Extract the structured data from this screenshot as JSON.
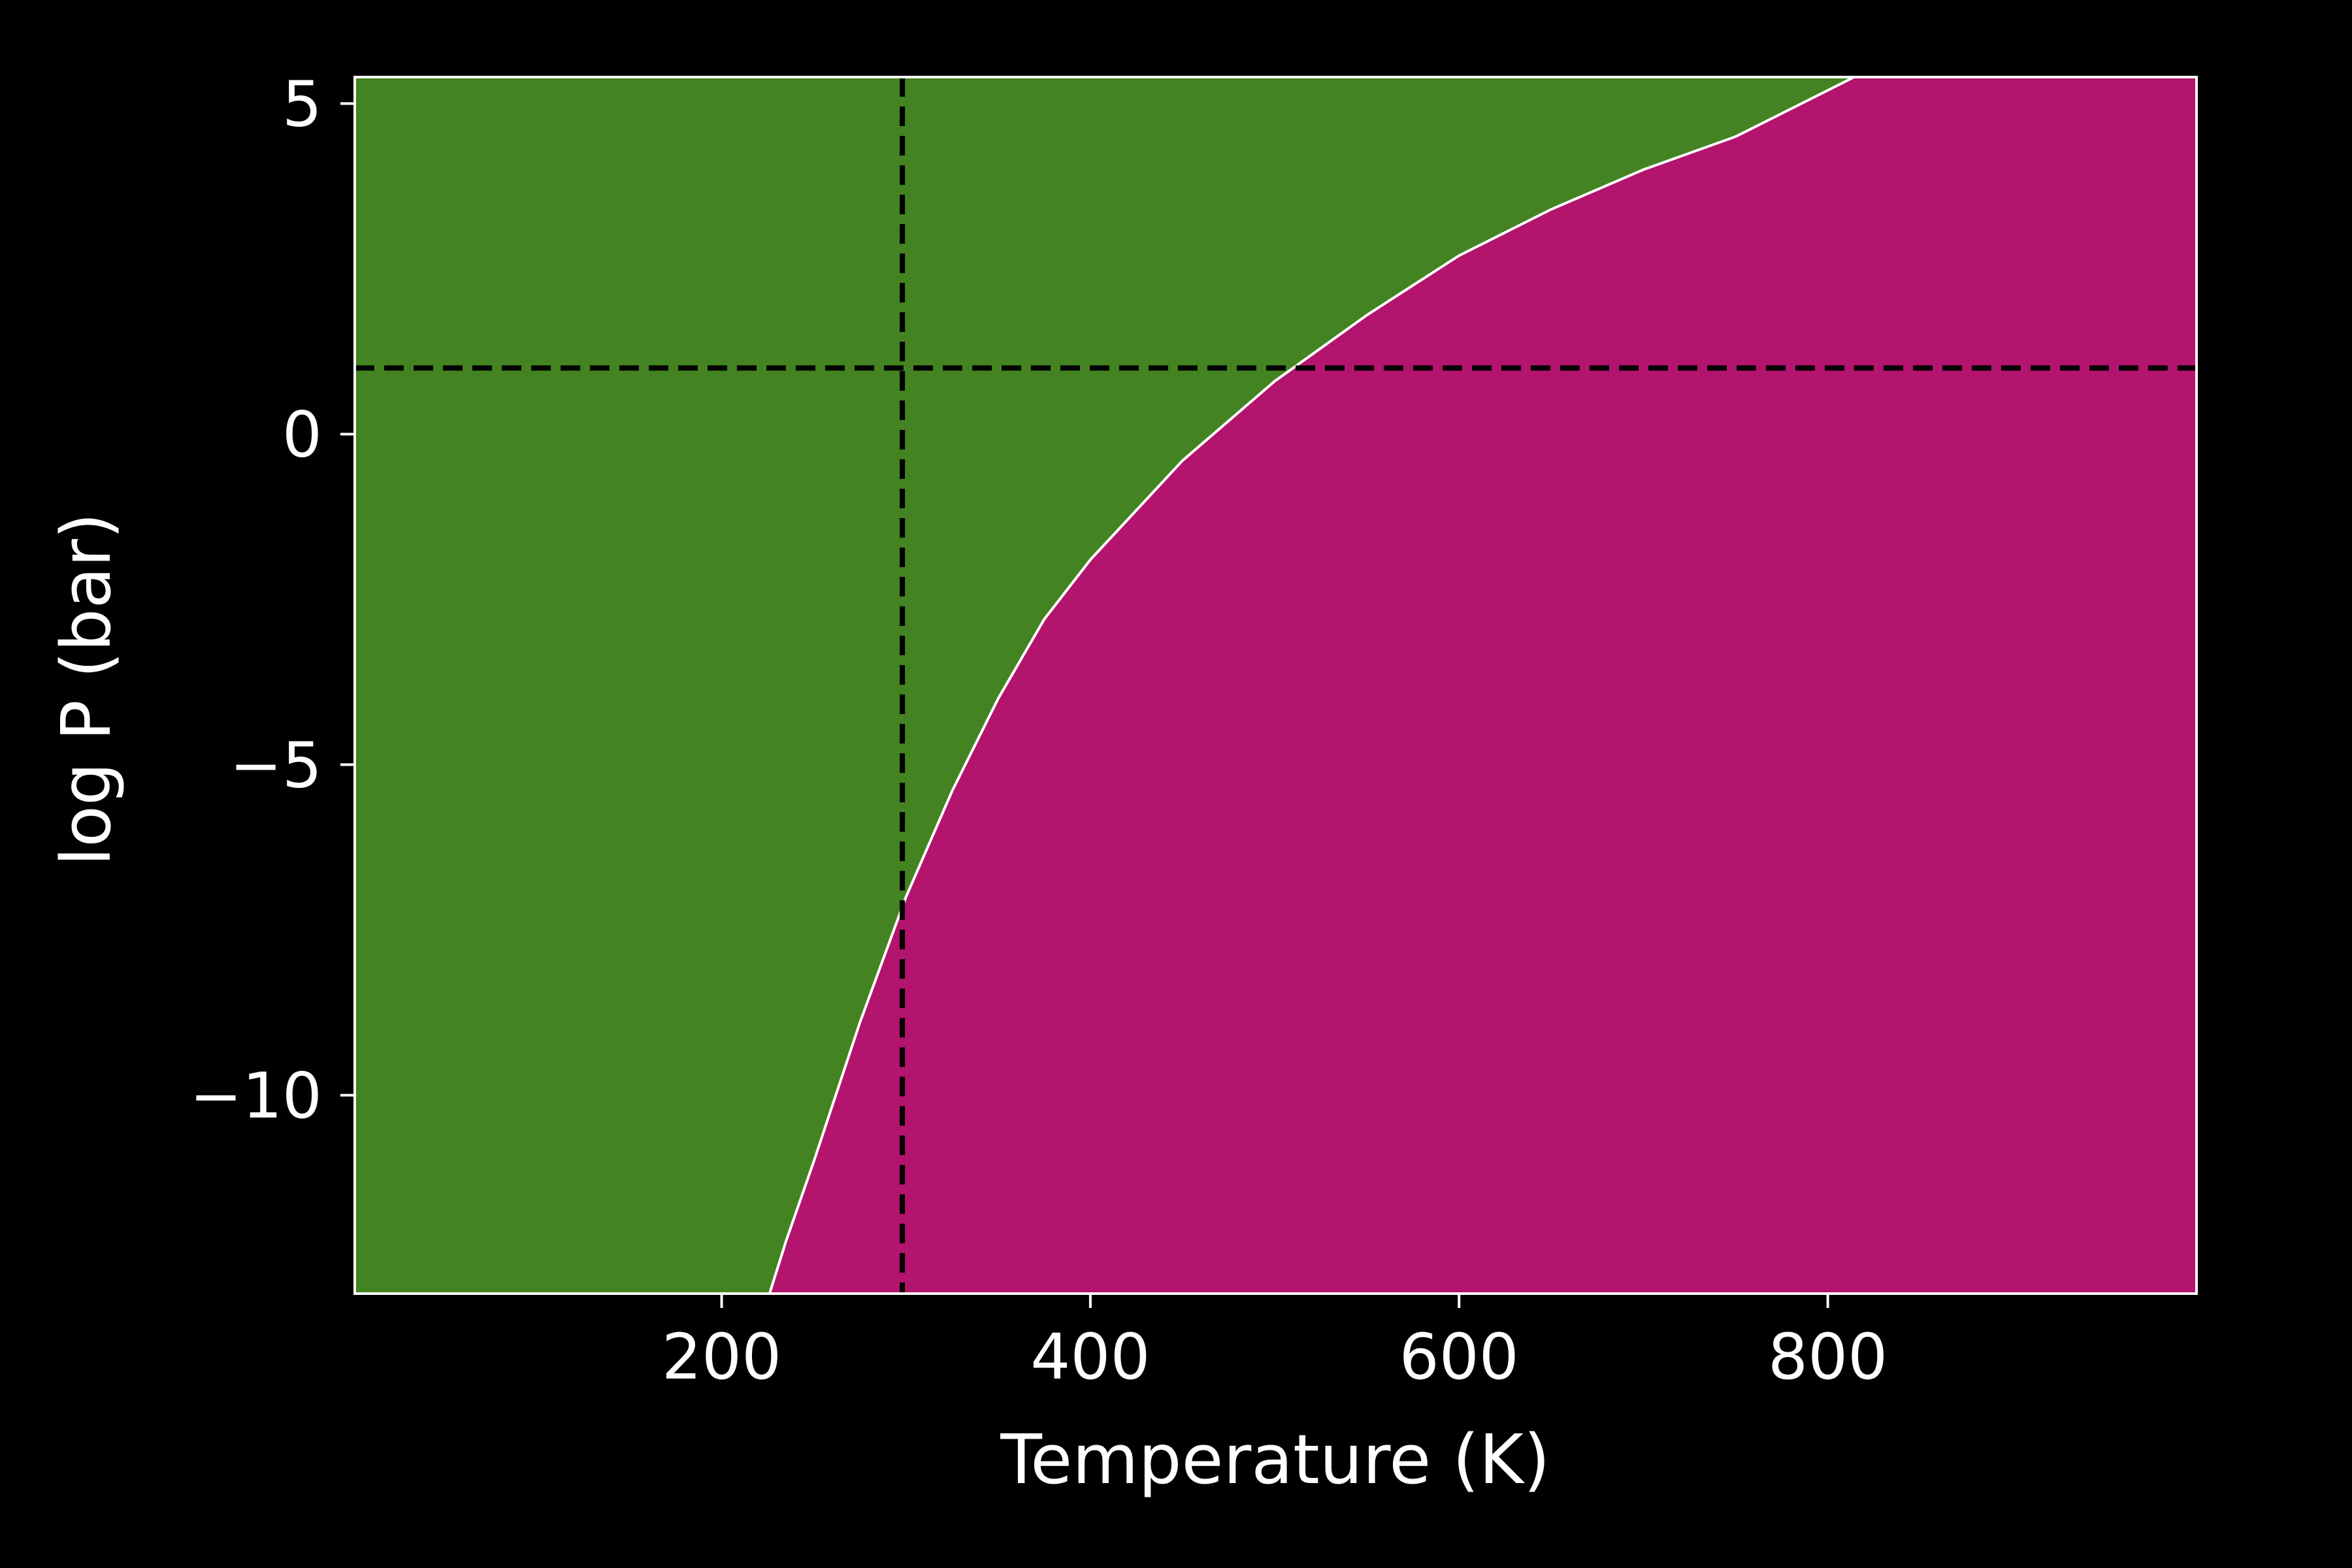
{
  "chart_data": {
    "type": "area",
    "title": "",
    "xlabel": "Temperature (K)",
    "ylabel": "log P (bar)",
    "xlim": [
      1,
      1000
    ],
    "ylim": [
      -13,
      5.4
    ],
    "x_ticks": [
      200,
      400,
      600,
      800
    ],
    "y_ticks": [
      5,
      0,
      -5,
      -10
    ],
    "x_tick_labels": [
      "200",
      "400",
      "600",
      "800"
    ],
    "y_tick_labels": [
      "5",
      "0",
      "−5",
      "−10"
    ],
    "grid": false,
    "regions": [
      {
        "side": "below-left of boundary",
        "color": "#438321"
      },
      {
        "side": "above-right of boundary",
        "color": "#b3146d"
      }
    ],
    "boundary": {
      "x": [
        226,
        235,
        250,
        275,
        300,
        325,
        350,
        375,
        400,
        450,
        500,
        550,
        600,
        650,
        700,
        750,
        800
      ],
      "y": [
        -13.0,
        -12.2,
        -11.0,
        -8.9,
        -7.0,
        -5.4,
        -4.0,
        -2.8,
        -1.9,
        -0.4,
        0.8,
        1.8,
        2.7,
        3.4,
        4.0,
        4.5,
        5.2
      ],
      "color": "#ffffff"
    },
    "reference_lines": [
      {
        "orientation": "vertical",
        "value": 298,
        "style": "dashed",
        "color": "#000000"
      },
      {
        "orientation": "horizontal",
        "value": 1,
        "style": "dashed",
        "color": "#000000"
      }
    ],
    "background": "#000000",
    "axis_color": "#ffffff"
  }
}
